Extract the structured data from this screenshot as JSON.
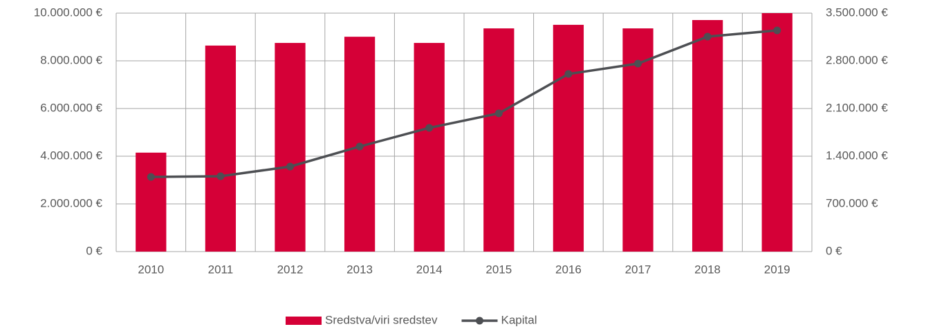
{
  "chart_data": {
    "type": "bar",
    "categories": [
      "2010",
      "2011",
      "2012",
      "2013",
      "2014",
      "2015",
      "2016",
      "2017",
      "2018",
      "2019"
    ],
    "series": [
      {
        "name": "Sredstva/viri sredstev",
        "type": "bar",
        "color": "#d50037",
        "values": [
          4150000,
          8640000,
          8750000,
          9010000,
          8750000,
          9360000,
          9510000,
          9360000,
          9710000,
          10000000
        ]
      },
      {
        "name": "Kapital",
        "type": "line",
        "axis": "y2",
        "color": "#4d4f53",
        "values": [
          1096000,
          1106000,
          1248000,
          1542000,
          1816000,
          2029000,
          2607000,
          2759000,
          3155000,
          3246000
        ]
      }
    ],
    "ylim": [
      0,
      10000000
    ],
    "yticks": [
      {
        "value": 0,
        "label": "0 €"
      },
      {
        "value": 2000000,
        "label": "2.000.000 €"
      },
      {
        "value": 4000000,
        "label": "4.000.000 €"
      },
      {
        "value": 6000000,
        "label": "6.000.000 €"
      },
      {
        "value": 8000000,
        "label": "8.000.000 €"
      },
      {
        "value": 10000000,
        "label": "10.000.000 €"
      }
    ],
    "y2lim": [
      0,
      3500000
    ],
    "y2ticks": [
      {
        "value": 0,
        "label": "0 €"
      },
      {
        "value": 700000,
        "label": "700.000 €"
      },
      {
        "value": 1400000,
        "label": "1.400.000 €"
      },
      {
        "value": 2100000,
        "label": "2.100.000 €"
      },
      {
        "value": 2800000,
        "label": "2.800.000 €"
      },
      {
        "value": 3500000,
        "label": "3.500.000 €"
      }
    ],
    "grid": true,
    "legend": "bottom"
  }
}
